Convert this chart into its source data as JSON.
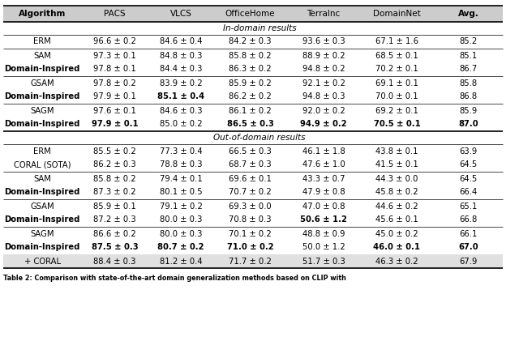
{
  "columns": [
    "Algorithm",
    "PACS",
    "VLCS",
    "OfficeHome",
    "TerraInc",
    "DomainNet",
    "Avg."
  ],
  "col_align": [
    "center",
    "center",
    "center",
    "center",
    "center",
    "center",
    "center"
  ],
  "section_indomain": "In-domain results",
  "section_outdomain": "Out-of-domain results",
  "indomain_rows": [
    {
      "algo": [
        "ERM"
      ],
      "data": [
        [
          "96.6 ± 0.2"
        ],
        [
          "84.6 ± 0.4"
        ],
        [
          "84.2 ± 0.3"
        ],
        [
          "93.6 ± 0.3"
        ],
        [
          "67.1 ± 1.6"
        ],
        [
          "85.2"
        ]
      ],
      "bold_data": [
        [
          false
        ],
        [
          false
        ],
        [
          false
        ],
        [
          false
        ],
        [
          false
        ],
        [
          false
        ]
      ],
      "algo_bold": [
        false
      ]
    },
    {
      "algo": [
        "SAM",
        "Domain-Inspired"
      ],
      "data": [
        [
          "97.3 ± 0.1",
          "97.8 ± 0.1"
        ],
        [
          "84.8 ± 0.3",
          "84.4 ± 0.3"
        ],
        [
          "85.8 ± 0.2",
          "86.3 ± 0.2"
        ],
        [
          "88.9 ± 0.2",
          "94.8 ± 0.2"
        ],
        [
          "68.5 ± 0.1",
          "70.2 ± 0.1"
        ],
        [
          "85.1",
          "86.7"
        ]
      ],
      "bold_data": [
        [
          false,
          false
        ],
        [
          false,
          false
        ],
        [
          false,
          false
        ],
        [
          false,
          false
        ],
        [
          false,
          false
        ],
        [
          false,
          false
        ]
      ],
      "algo_bold": [
        false,
        true
      ]
    },
    {
      "algo": [
        "GSAM",
        "Domain-Inspired"
      ],
      "data": [
        [
          "97.8 ± 0.2",
          "97.9 ± 0.1"
        ],
        [
          "83.9 ± 0.2",
          "85.1 ± 0.4"
        ],
        [
          "85.9 ± 0.2",
          "86.2 ± 0.2"
        ],
        [
          "92.1 ± 0.2",
          "94.8 ± 0.3"
        ],
        [
          "69.1 ± 0.1",
          "70.0 ± 0.1"
        ],
        [
          "85.8",
          "86.8"
        ]
      ],
      "bold_data": [
        [
          false,
          false
        ],
        [
          false,
          true
        ],
        [
          false,
          false
        ],
        [
          false,
          false
        ],
        [
          false,
          false
        ],
        [
          false,
          false
        ]
      ],
      "algo_bold": [
        false,
        true
      ]
    },
    {
      "algo": [
        "SAGM",
        "Domain-Inspired"
      ],
      "data": [
        [
          "97.6 ± 0.1",
          "97.9 ± 0.1"
        ],
        [
          "84.6 ± 0.3",
          "85.0 ± 0.2"
        ],
        [
          "86.1 ± 0.2",
          "86.5 ± 0.3"
        ],
        [
          "92.0 ± 0.2",
          "94.9 ± 0.2"
        ],
        [
          "69.2 ± 0.1",
          "70.5 ± 0.1"
        ],
        [
          "85.9",
          "87.0"
        ]
      ],
      "bold_data": [
        [
          false,
          true
        ],
        [
          false,
          false
        ],
        [
          false,
          true
        ],
        [
          false,
          true
        ],
        [
          false,
          true
        ],
        [
          false,
          true
        ]
      ],
      "algo_bold": [
        false,
        true
      ]
    }
  ],
  "outdomain_rows": [
    {
      "algo": [
        "ERM",
        "CORAL (SOTA)"
      ],
      "data": [
        [
          "85.5 ± 0.2",
          "86.2 ± 0.3"
        ],
        [
          "77.3 ± 0.4",
          "78.8 ± 0.3"
        ],
        [
          "66.5 ± 0.3",
          "68.7 ± 0.3"
        ],
        [
          "46.1 ± 1.8",
          "47.6 ± 1.0"
        ],
        [
          "43.8 ± 0.1",
          "41.5 ± 0.1"
        ],
        [
          "63.9",
          "64.5"
        ]
      ],
      "bold_data": [
        [
          false,
          false
        ],
        [
          false,
          false
        ],
        [
          false,
          false
        ],
        [
          false,
          false
        ],
        [
          false,
          false
        ],
        [
          false,
          false
        ]
      ],
      "algo_bold": [
        false,
        false
      ]
    },
    {
      "algo": [
        "SAM",
        "Domain-Inspired"
      ],
      "data": [
        [
          "85.8 ± 0.2",
          "87.3 ± 0.2"
        ],
        [
          "79.4 ± 0.1",
          "80.1 ± 0.5"
        ],
        [
          "69.6 ± 0.1",
          "70.7 ± 0.2"
        ],
        [
          "43.3 ± 0.7",
          "47.9 ± 0.8"
        ],
        [
          "44.3 ± 0.0",
          "45.8 ± 0.2"
        ],
        [
          "64.5",
          "66.4"
        ]
      ],
      "bold_data": [
        [
          false,
          false
        ],
        [
          false,
          false
        ],
        [
          false,
          false
        ],
        [
          false,
          false
        ],
        [
          false,
          false
        ],
        [
          false,
          false
        ]
      ],
      "algo_bold": [
        false,
        true
      ]
    },
    {
      "algo": [
        "GSAM",
        "Domain-Inspired"
      ],
      "data": [
        [
          "85.9 ± 0.1",
          "87.2 ± 0.3"
        ],
        [
          "79.1 ± 0.2",
          "80.0 ± 0.3"
        ],
        [
          "69.3 ± 0.0",
          "70.8 ± 0.3"
        ],
        [
          "47.0 ± 0.8",
          "50.6 ± 1.2"
        ],
        [
          "44.6 ± 0.2",
          "45.6 ± 0.1"
        ],
        [
          "65.1",
          "66.8"
        ]
      ],
      "bold_data": [
        [
          false,
          false
        ],
        [
          false,
          false
        ],
        [
          false,
          false
        ],
        [
          false,
          true
        ],
        [
          false,
          false
        ],
        [
          false,
          false
        ]
      ],
      "algo_bold": [
        false,
        true
      ]
    },
    {
      "algo": [
        "SAGM",
        "Domain-Inspired",
        "+ CORAL"
      ],
      "data": [
        [
          "86.6 ± 0.2",
          "87.5 ± 0.3",
          "88.4 ± 0.3"
        ],
        [
          "80.0 ± 0.3",
          "80.7 ± 0.2",
          "81.2 ± 0.4"
        ],
        [
          "70.1 ± 0.2",
          "71.0 ± 0.2",
          "71.7 ± 0.2"
        ],
        [
          "48.8 ± 0.9",
          "50.0 ± 1.2",
          "51.7 ± 0.3"
        ],
        [
          "45.0 ± 0.2",
          "46.0 ± 0.1",
          "46.3 ± 0.2"
        ],
        [
          "66.1",
          "67.0",
          "67.9"
        ]
      ],
      "bold_data": [
        [
          false,
          true,
          false
        ],
        [
          false,
          true,
          false
        ],
        [
          false,
          true,
          false
        ],
        [
          false,
          false,
          false
        ],
        [
          false,
          true,
          false
        ],
        [
          false,
          true,
          false
        ]
      ],
      "algo_bold": [
        false,
        true,
        false
      ],
      "shade_last": true
    }
  ],
  "caption": "Table 2: Comparison with state-of-the-art domain generalization methods based on CLIP with",
  "header_bg": "#cccccc",
  "shade_bg": "#e0e0e0",
  "line_color": "#000000",
  "thick_lw": 1.2,
  "thin_lw": 0.5
}
